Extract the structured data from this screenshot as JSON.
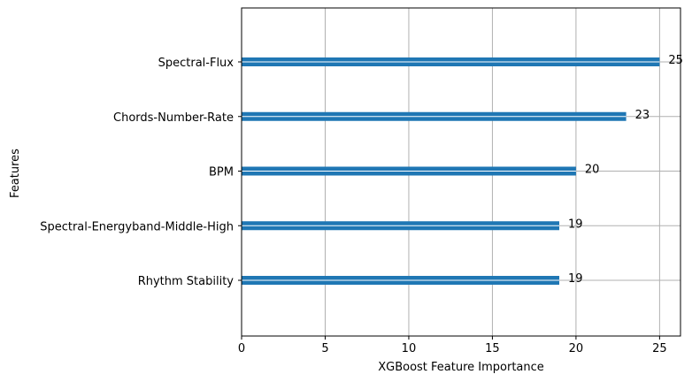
{
  "chart_data": {
    "type": "bar",
    "orientation": "horizontal",
    "categories": [
      "Spectral-Flux",
      "Chords-Number-Rate",
      "BPM",
      "Spectral-Energyband-Middle-High",
      "Rhythm Stability"
    ],
    "values": [
      25,
      23,
      20,
      19,
      19
    ],
    "data_labels": [
      "25",
      "23",
      "20",
      "19",
      "19"
    ],
    "xlabel": "XGBoost Feature Importance",
    "ylabel": "Features",
    "xlim": [
      0,
      26.25
    ],
    "xticks": [
      0,
      5,
      10,
      15,
      20,
      25
    ],
    "xtick_labels": [
      "0",
      "5",
      "10",
      "15",
      "20",
      "25"
    ],
    "grid": true,
    "bar_color": "#1f77b4",
    "grid_color": "#b0b0b0"
  }
}
